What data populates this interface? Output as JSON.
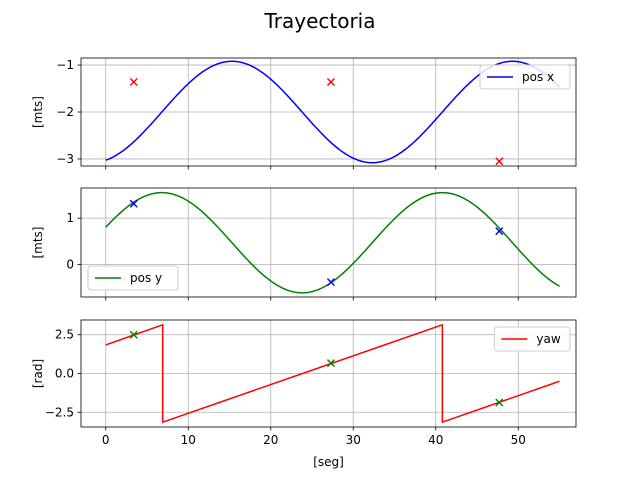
{
  "chart_data": {
    "title": "Trayectoria",
    "type": "line",
    "xlabel": "[seg]",
    "xlim": [
      -3,
      57
    ],
    "xticks": [
      0,
      10,
      20,
      30,
      40,
      50
    ],
    "subplots": [
      {
        "ylabel": "[mts]",
        "ylim": [
          -3.15,
          -0.85
        ],
        "yticks": [
          -3,
          -2,
          -1
        ],
        "ytick_labels": [
          "−3",
          "−2",
          "−1"
        ],
        "grid": true,
        "legend_position": "upper right",
        "series": [
          {
            "name": "pos x",
            "color": "#0000ff",
            "kind": "sine",
            "offset": -2.0,
            "amp": 1.08,
            "period": 34.0,
            "phase_x": 6.8,
            "x_start": 0,
            "x_end": 55
          }
        ],
        "markers": {
          "color": "#ff0000",
          "symbol": "x",
          "x": [
            3.4,
            27.3,
            47.7
          ],
          "y": [
            -1.36,
            -1.36,
            -3.05
          ]
        }
      },
      {
        "ylabel": "[mts]",
        "ylim": [
          -0.7,
          1.65
        ],
        "yticks": [
          0,
          1
        ],
        "ytick_labels": [
          "0",
          "1"
        ],
        "grid": true,
        "legend_position": "lower left",
        "series": [
          {
            "name": "pos y",
            "color": "#008000",
            "kind": "sine",
            "offset": 0.47,
            "amp": 1.08,
            "period": 34.0,
            "phase_x": -1.7,
            "x_start": 0,
            "x_end": 55
          }
        ],
        "markers": {
          "color": "#0000ff",
          "symbol": "x",
          "x": [
            3.4,
            27.3,
            47.7
          ],
          "y": [
            1.31,
            -0.38,
            0.72
          ]
        }
      },
      {
        "ylabel": "[rad]",
        "ylim": [
          -3.45,
          3.45
        ],
        "yticks": [
          -2.5,
          0.0,
          2.5
        ],
        "ytick_labels": [
          "−2.5",
          "0.0",
          "2.5"
        ],
        "grid": true,
        "legend_position": "upper right",
        "series": [
          {
            "name": "yaw",
            "color": "#ff0000",
            "kind": "polyline",
            "x": [
              0,
              6.9,
              6.9,
              40.8,
              40.8,
              55
            ],
            "y": [
              1.84,
              3.14,
              -3.14,
              3.14,
              -3.14,
              -0.5
            ]
          }
        ],
        "markers": {
          "color": "#008000",
          "symbol": "x",
          "x": [
            3.4,
            27.3,
            47.7
          ],
          "y": [
            2.5,
            0.67,
            -1.87
          ]
        }
      }
    ]
  }
}
